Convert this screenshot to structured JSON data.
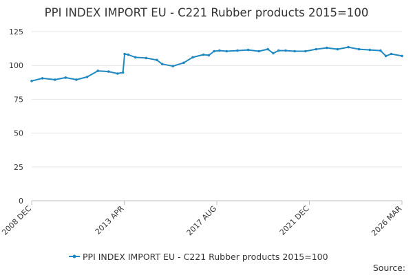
{
  "chart_data": {
    "type": "line",
    "title": "PPI INDEX IMPORT EU - C221 Rubber products 2015=100",
    "xlabel": "",
    "ylabel": "",
    "ylim": [
      0,
      125
    ],
    "y_ticks": [
      0,
      25,
      50,
      75,
      100,
      125
    ],
    "x_tick_labels": [
      "2008 DEC",
      "2013 APR",
      "2017 AUG",
      "2021 DEC",
      "2026 MAR"
    ],
    "grid": true,
    "legend_position": "bottom",
    "colors": {
      "series": "#1f88c0",
      "grid": "#e6e6e6",
      "text": "#333333",
      "axis": "#c0c0c0"
    },
    "source_label": "Source:",
    "series": [
      {
        "name": "PPI INDEX IMPORT EU - C221 Rubber products 2015=100",
        "x": [
          "2008-12",
          "2009-06",
          "2010-01",
          "2010-07",
          "2011-01",
          "2011-07",
          "2012-01",
          "2012-07",
          "2012-12",
          "2013-03",
          "2013-04",
          "2013-06",
          "2013-10",
          "2014-04",
          "2014-10",
          "2015-01",
          "2015-07",
          "2016-01",
          "2016-06",
          "2016-12",
          "2017-03",
          "2017-06",
          "2017-09",
          "2018-01",
          "2018-07",
          "2019-01",
          "2019-07",
          "2019-12",
          "2020-03",
          "2020-06",
          "2020-10",
          "2021-03",
          "2021-09",
          "2022-03",
          "2022-09",
          "2023-03",
          "2023-09",
          "2024-03",
          "2024-09",
          "2025-03",
          "2025-06",
          "2025-09",
          "2026-03"
        ],
        "values": [
          88.5,
          90.5,
          89.5,
          91.0,
          89.5,
          91.5,
          96.0,
          95.5,
          94.0,
          94.8,
          108.5,
          108.0,
          106.0,
          105.5,
          104.0,
          101.0,
          99.5,
          102.0,
          106.0,
          108.0,
          107.5,
          110.5,
          111.0,
          110.5,
          111.0,
          111.5,
          110.5,
          112.0,
          109.0,
          111.0,
          111.0,
          110.5,
          110.5,
          112.0,
          113.0,
          112.0,
          113.5,
          112.0,
          111.5,
          111.0,
          107.0,
          108.5,
          107.0
        ]
      }
    ]
  }
}
